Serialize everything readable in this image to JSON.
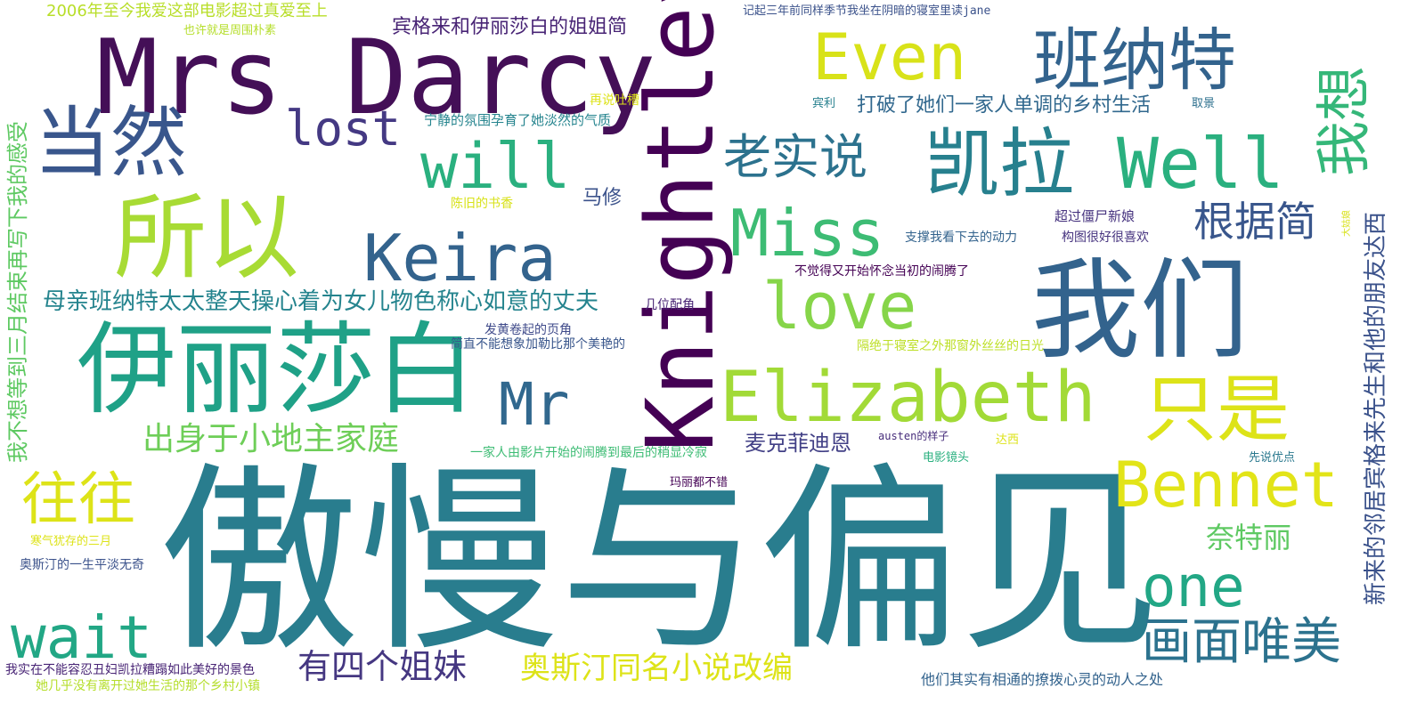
{
  "words": [
    {
      "text": "傲慢与偏见",
      "color": "#297d8e"
    },
    {
      "text": "Mrs Darcy",
      "color": "#440f57"
    },
    {
      "text": "Knightley",
      "color": "#440154"
    },
    {
      "text": "我们",
      "color": "#33638d"
    },
    {
      "text": "伊丽莎白",
      "color": "#1fa187"
    },
    {
      "text": "所以",
      "color": "#a8db34"
    },
    {
      "text": "班纳特",
      "color": "#33638d"
    },
    {
      "text": "凯拉",
      "color": "#27808e"
    },
    {
      "text": "Well",
      "color": "#2ab07f"
    },
    {
      "text": "Elizabeth",
      "color": "#a2da37"
    },
    {
      "text": "Bennet",
      "color": "#e2e418"
    },
    {
      "text": "当然",
      "color": "#39568c"
    },
    {
      "text": "Keira",
      "color": "#33638d"
    },
    {
      "text": "Even",
      "color": "#d8e219"
    },
    {
      "text": "Miss",
      "color": "#3dbc74"
    },
    {
      "text": "love",
      "color": "#86d549"
    },
    {
      "text": "只是",
      "color": "#dde318"
    },
    {
      "text": "我想",
      "color": "#35b779"
    },
    {
      "text": "will",
      "color": "#2ab07f"
    },
    {
      "text": "lost",
      "color": "#443983"
    },
    {
      "text": "Mr",
      "color": "#31688e"
    },
    {
      "text": "老实说",
      "color": "#2c728e"
    },
    {
      "text": "one",
      "color": "#22a785"
    },
    {
      "text": "wait",
      "color": "#22a785"
    },
    {
      "text": "往往",
      "color": "#dde318"
    },
    {
      "text": "画面唯美",
      "color": "#2c728e"
    },
    {
      "text": "根据简",
      "color": "#39568c"
    },
    {
      "text": "出身于小地主家庭",
      "color": "#6ece58"
    },
    {
      "text": "有四个姐妹",
      "color": "#453781"
    },
    {
      "text": "奥斯汀同名小说改编",
      "color": "#dde318"
    },
    {
      "text": "奈特丽",
      "color": "#5ec962"
    },
    {
      "text": "母亲班纳特太太整天操心着为女儿物色称心如意的丈夫",
      "color": "#25848e"
    },
    {
      "text": "新来的邻居宾格来先生和他的朋友达西",
      "color": "#3b528b"
    },
    {
      "text": "我不想等到三月结束再写下我的感受",
      "color": "#5ec962"
    },
    {
      "text": "宾格来和伊丽莎白的姐姐简",
      "color": "#482475"
    },
    {
      "text": "打破了她们一家人单调的乡村生活",
      "color": "#31688e"
    },
    {
      "text": "麦克菲迪恩",
      "color": "#424086"
    },
    {
      "text": "马修",
      "color": "#3b528b"
    },
    {
      "text": "2006年至今我爱这部电影超过真爱至上",
      "color": "#b8de29"
    },
    {
      "text": "也许就是周围朴素",
      "color": "#b5de2b"
    },
    {
      "text": "记起三年前同样季节我坐在阴暗的寝室里读jane",
      "color": "#3b528b"
    },
    {
      "text": "再说吐槽",
      "color": "#dde318"
    },
    {
      "text": "宁静的氛围孕育了她淡然的气质",
      "color": "#25848e"
    },
    {
      "text": "宾利",
      "color": "#27808e"
    },
    {
      "text": "取景",
      "color": "#2d708e"
    },
    {
      "text": "陈旧的书香",
      "color": "#d8e219"
    },
    {
      "text": "超过僵尸新娘",
      "color": "#46337f"
    },
    {
      "text": "构图很好很喜欢",
      "color": "#46337f"
    },
    {
      "text": "支撑我看下去的动力",
      "color": "#33638d"
    },
    {
      "text": "大姑娘",
      "color": "#d8e219"
    },
    {
      "text": "不觉得又开始怀念当初的闹腾了",
      "color": "#440154"
    },
    {
      "text": "几位配角",
      "color": "#482475"
    },
    {
      "text": "发黄卷起的页角",
      "color": "#3e4989"
    },
    {
      "text": "简直不能想象加勒比那个美艳的",
      "color": "#39568c"
    },
    {
      "text": "隔绝于寝室之外那窗外丝丝的日光",
      "color": "#bddf26"
    },
    {
      "text": "austen的样子",
      "color": "#472d7b"
    },
    {
      "text": "达西",
      "color": "#dde318"
    },
    {
      "text": "一家人由影片开始的闹腾到最后的稍显冷寂",
      "color": "#3dbc74"
    },
    {
      "text": "电影镜头",
      "color": "#2ab07f"
    },
    {
      "text": "先说优点",
      "color": "#2a788e"
    },
    {
      "text": "玛丽都不错",
      "color": "#440154"
    },
    {
      "text": "寒气犹存的三月",
      "color": "#dde318"
    },
    {
      "text": "奥斯汀的一生平淡无奇",
      "color": "#3b528b"
    },
    {
      "text": "我实在不能容忍丑妇凯拉糟蹋如此美好的景色",
      "color": "#482475"
    },
    {
      "text": "她几乎没有离开过她生活的那个乡村小镇",
      "color": "#b5de2b"
    },
    {
      "text": "他们其实有相通的撩拨心灵的动人之处",
      "color": "#33638d"
    }
  ]
}
